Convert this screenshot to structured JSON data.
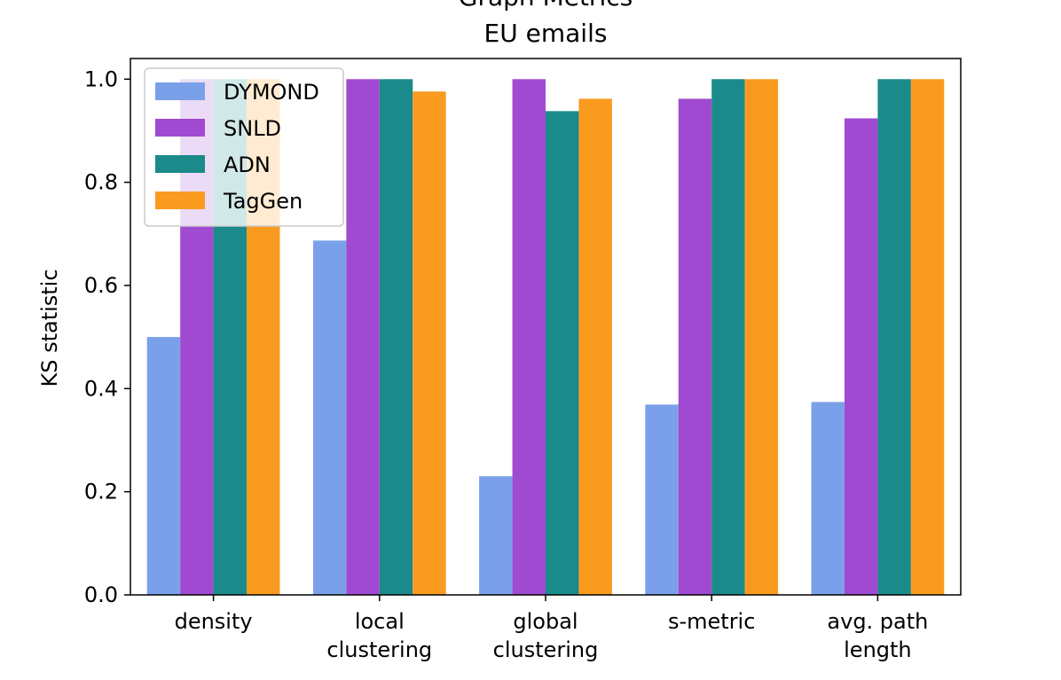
{
  "chart_data": {
    "type": "bar",
    "title": "Graph Metrics",
    "subtitle": "EU emails",
    "xlabel": "",
    "ylabel": "KS statistic",
    "ylim": [
      0,
      1.04
    ],
    "yticks": [
      "0.0",
      "0.2",
      "0.4",
      "0.6",
      "0.8",
      "1.0"
    ],
    "ytick_values": [
      0,
      0.2,
      0.4,
      0.6,
      0.8,
      1.0
    ],
    "categories": [
      [
        "density"
      ],
      [
        "local",
        "clustering"
      ],
      [
        "global",
        "clustering"
      ],
      [
        "s-metric"
      ],
      [
        "avg. path",
        "length"
      ]
    ],
    "series": [
      {
        "name": "DYMOND",
        "color": "#7aa0ea",
        "values": [
          0.5,
          0.687,
          0.23,
          0.369,
          0.374
        ]
      },
      {
        "name": "SNLD",
        "color": "#a04ad1",
        "values": [
          1.0,
          1.0,
          1.0,
          0.962,
          0.924
        ]
      },
      {
        "name": "ADN",
        "color": "#1a8a8a",
        "values": [
          1.0,
          1.0,
          0.938,
          1.0,
          1.0
        ]
      },
      {
        "name": "TagGen",
        "color": "#fa9b20",
        "values": [
          1.0,
          0.976,
          0.962,
          1.0,
          1.0
        ]
      }
    ],
    "legend_position": "top-left",
    "grid": false
  }
}
